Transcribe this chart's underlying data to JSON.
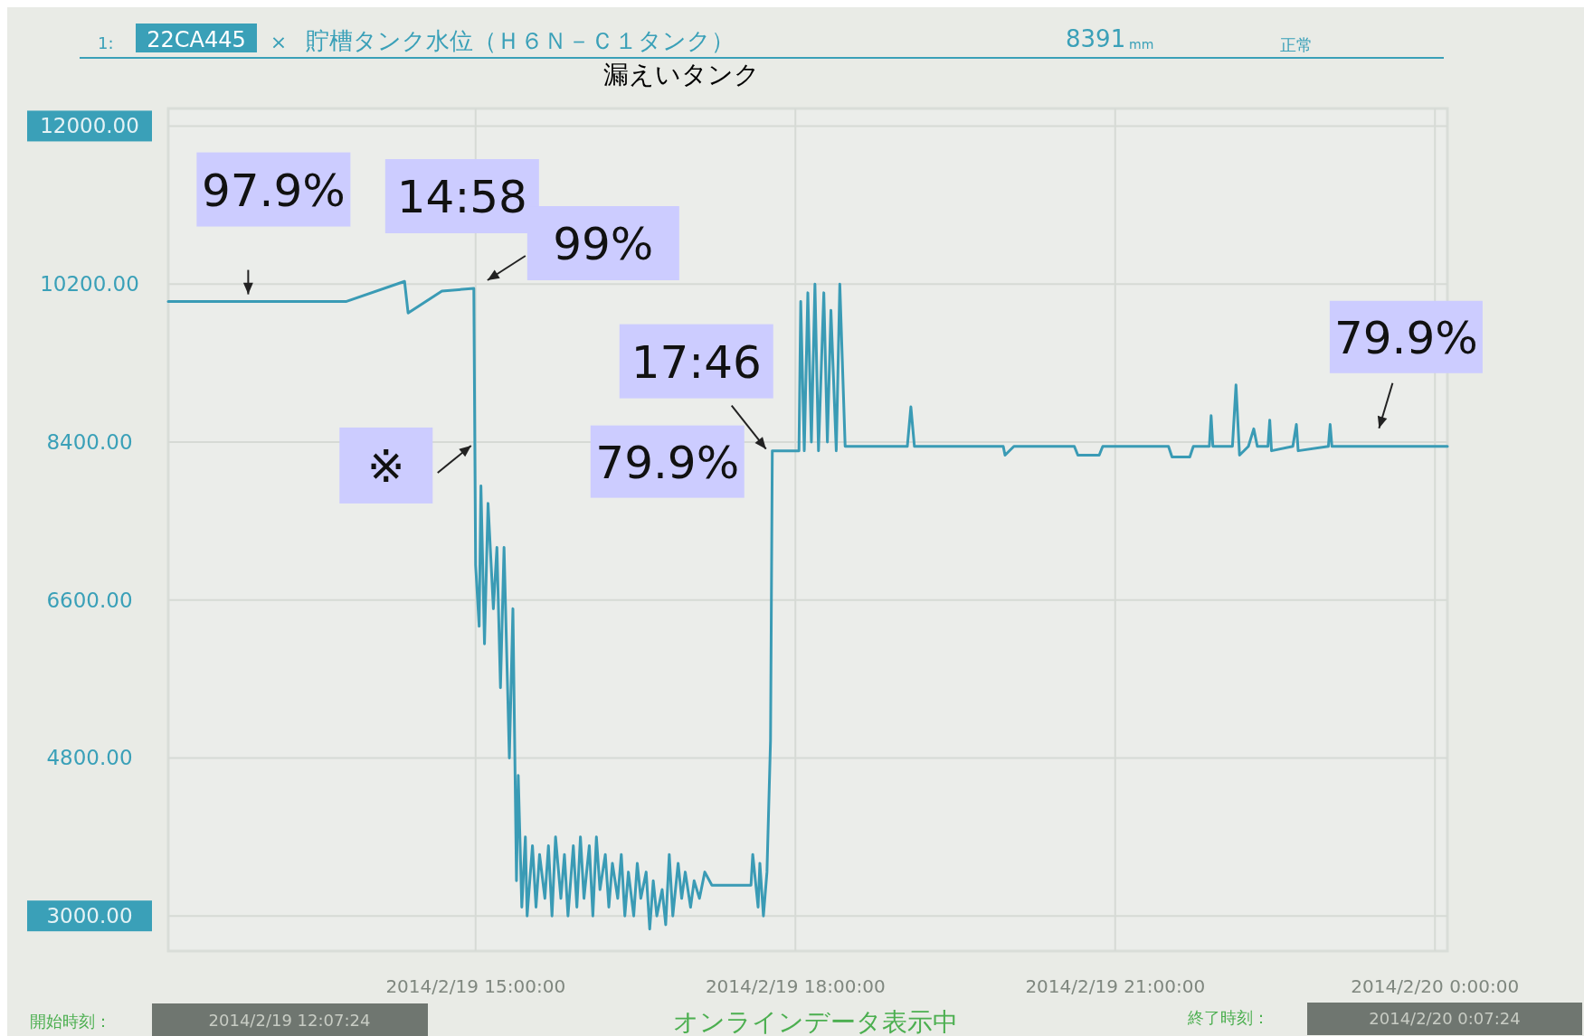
{
  "chart_data": {
    "type": "line",
    "title": "貯槽タンク水位（Ｈ６Ｎ－Ｃ１タンク）",
    "subtitle": "漏えいタンク",
    "xlim": [
      "2014-02-19T12:07",
      "2014-02-20T00:07"
    ],
    "xticks": [
      {
        "value": "2014-02-19T15:00",
        "label": "2014/2/19 15:00:00"
      },
      {
        "value": "2014-02-19T18:00",
        "label": "2014/2/19 18:00:00"
      },
      {
        "value": "2014-02-19T21:00",
        "label": "2014/2/19 21:00:00"
      },
      {
        "value": "2014-02-20T00:00",
        "label": "2014/2/20 0:00:00"
      }
    ],
    "ylim": [
      2600,
      12200
    ],
    "yticks": [
      {
        "value": 3000,
        "label": "3000.00"
      },
      {
        "value": 4800,
        "label": "4800.00"
      },
      {
        "value": 6600,
        "label": "6600.00"
      },
      {
        "value": 8400,
        "label": "8400.00"
      },
      {
        "value": 10200,
        "label": "10200.00"
      },
      {
        "value": 12000,
        "label": "12000.00"
      }
    ],
    "grid": true,
    "series": [
      {
        "color": "#3a9bb5",
        "x": [
          "2014-02-19T12:07",
          "2014-02-19T13:47",
          "2014-02-19T14:20",
          "2014-02-19T14:22",
          "2014-02-19T14:41",
          "2014-02-19T14:59",
          "2014-02-19T15:00",
          "2014-02-19T15:02",
          "2014-02-19T15:03",
          "2014-02-19T15:05",
          "2014-02-19T15:07",
          "2014-02-19T15:10",
          "2014-02-19T15:12",
          "2014-02-19T15:14",
          "2014-02-19T15:16",
          "2014-02-19T15:19",
          "2014-02-19T15:21",
          "2014-02-19T15:23",
          "2014-02-19T15:24",
          "2014-02-19T15:26",
          "2014-02-19T15:28",
          "2014-02-19T15:29",
          "2014-02-19T15:32",
          "2014-02-19T15:34",
          "2014-02-19T15:36",
          "2014-02-19T15:39",
          "2014-02-19T15:41",
          "2014-02-19T15:43",
          "2014-02-19T15:45",
          "2014-02-19T15:48",
          "2014-02-19T15:50",
          "2014-02-19T15:52",
          "2014-02-19T15:55",
          "2014-02-19T15:57",
          "2014-02-19T15:59",
          "2014-02-19T16:01",
          "2014-02-19T16:04",
          "2014-02-19T16:06",
          "2014-02-19T16:08",
          "2014-02-19T16:10",
          "2014-02-19T16:13",
          "2014-02-19T16:15",
          "2014-02-19T16:17",
          "2014-02-19T16:20",
          "2014-02-19T16:22",
          "2014-02-19T16:24",
          "2014-02-19T16:26",
          "2014-02-19T16:29",
          "2014-02-19T16:31",
          "2014-02-19T16:33",
          "2014-02-19T16:36",
          "2014-02-19T16:38",
          "2014-02-19T16:40",
          "2014-02-19T16:42",
          "2014-02-19T16:45",
          "2014-02-19T16:47",
          "2014-02-19T16:49",
          "2014-02-19T16:51",
          "2014-02-19T16:54",
          "2014-02-19T16:56",
          "2014-02-19T16:58",
          "2014-02-19T17:01",
          "2014-02-19T17:03",
          "2014-02-19T17:06",
          "2014-02-19T17:09",
          "2014-02-19T17:13",
          "2014-02-19T17:35",
          "2014-02-19T17:36",
          "2014-02-19T17:39",
          "2014-02-19T17:40",
          "2014-02-19T17:42",
          "2014-02-19T17:44",
          "2014-02-19T17:46",
          "2014-02-19T17:47",
          "2014-02-19T18:02",
          "2014-02-19T18:03",
          "2014-02-19T18:05",
          "2014-02-19T18:07",
          "2014-02-19T18:09",
          "2014-02-19T18:11",
          "2014-02-19T18:13",
          "2014-02-19T18:16",
          "2014-02-19T18:18",
          "2014-02-19T18:20",
          "2014-02-19T18:23",
          "2014-02-19T18:25",
          "2014-02-19T18:28",
          "2014-02-19T19:03",
          "2014-02-19T19:05",
          "2014-02-19T19:07",
          "2014-02-19T19:57",
          "2014-02-19T19:58",
          "2014-02-19T20:03",
          "2014-02-19T20:37",
          "2014-02-19T20:39",
          "2014-02-19T20:51",
          "2014-02-19T20:53",
          "2014-02-19T21:30",
          "2014-02-19T21:32",
          "2014-02-19T21:42",
          "2014-02-19T21:44",
          "2014-02-19T21:53",
          "2014-02-19T21:54",
          "2014-02-19T21:55",
          "2014-02-19T22:06",
          "2014-02-19T22:08",
          "2014-02-19T22:10",
          "2014-02-19T22:15",
          "2014-02-19T22:18",
          "2014-02-19T22:20",
          "2014-02-19T22:26",
          "2014-02-19T22:27",
          "2014-02-19T22:28",
          "2014-02-19T22:40",
          "2014-02-19T22:42",
          "2014-02-19T22:43",
          "2014-02-19T23:00",
          "2014-02-19T23:01",
          "2014-02-19T23:02",
          "2014-02-20T00:07"
        ],
        "values": [
          10000,
          10000,
          10230,
          9870,
          10120,
          10150,
          7000,
          6300,
          7900,
          6100,
          7700,
          6500,
          7200,
          5600,
          7200,
          4800,
          6500,
          3400,
          4600,
          3100,
          3900,
          3000,
          3800,
          3100,
          3700,
          3200,
          3800,
          3000,
          3900,
          3200,
          3700,
          3000,
          3800,
          3100,
          3900,
          3200,
          3800,
          3000,
          3900,
          3300,
          3700,
          3100,
          3600,
          3200,
          3700,
          3000,
          3500,
          3000,
          3600,
          3200,
          3500,
          2850,
          3400,
          3000,
          3300,
          2900,
          3700,
          3000,
          3600,
          3200,
          3500,
          3100,
          3400,
          3200,
          3500,
          3350,
          3350,
          3700,
          3100,
          3600,
          3000,
          3500,
          5000,
          8300,
          8300,
          10000,
          8300,
          10100,
          8400,
          10200,
          8300,
          10100,
          8400,
          9900,
          8300,
          10200,
          8350,
          8350,
          8800,
          8350,
          8350,
          8250,
          8350,
          8350,
          8250,
          8250,
          8350,
          8350,
          8230,
          8230,
          8350,
          8350,
          8700,
          8350,
          8350,
          9050,
          8250,
          8350,
          8550,
          8350,
          8350,
          8650,
          8300,
          8350,
          8600,
          8300,
          8350,
          8600,
          8350,
          8350
        ]
      }
    ],
    "annotations": [
      {
        "text": "97.9%",
        "x": "2014-02-19T12:52",
        "y": 10000
      },
      {
        "text": "14:58",
        "x": "2014-02-19T14:58",
        "y": 10150
      },
      {
        "text": "99%",
        "x": "2014-02-19T14:58",
        "y": 10150
      },
      {
        "text": "※",
        "x": "2014-02-19T14:59",
        "y": 8400
      },
      {
        "text": "17:46",
        "x": "2014-02-19T17:46",
        "y": 8300
      },
      {
        "text": "79.9%",
        "x": "2014-02-19T17:46",
        "y": 8300
      },
      {
        "text": "79.9%",
        "x": "2014-02-19T23:28",
        "y": 8350
      },
      "1:",
      "22CA445",
      "×",
      "8391",
      "mm",
      "正常",
      "開始時刻：",
      "2014/2/19 12:07:24",
      "オンラインデータ表示中",
      "終了時刻：",
      "2014/2/20 0:07:24"
    ]
  }
}
